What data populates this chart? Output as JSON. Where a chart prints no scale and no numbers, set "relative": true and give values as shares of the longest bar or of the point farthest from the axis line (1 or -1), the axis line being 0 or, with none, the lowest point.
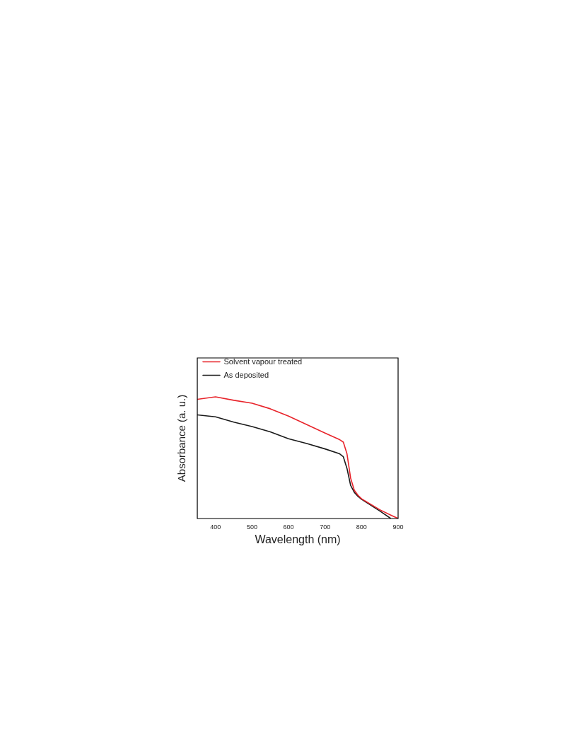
{
  "chart_data": {
    "type": "line",
    "xlabel": "Wavelength (nm)",
    "ylabel": "Absorbance (a. u.)",
    "relative": true,
    "xlim": [
      350,
      900
    ],
    "xticks": [
      400,
      500,
      600,
      700,
      800,
      900
    ],
    "legend": "top left",
    "grid": false,
    "marker": "none",
    "line_style": "solid",
    "series": [
      {
        "name": "Solvent vapour treated",
        "color": "#e8242b",
        "x": [
          350,
          400,
          450,
          500,
          550,
          600,
          650,
          700,
          740,
          750,
          760,
          770,
          780,
          790,
          800,
          850,
          880,
          900
        ],
        "values": [
          0.98,
          1,
          0.972,
          0.948,
          0.902,
          0.842,
          0.772,
          0.702,
          0.648,
          0.628,
          0.532,
          0.332,
          0.232,
          0.192,
          0.162,
          0.072,
          0.028,
          0
        ]
      },
      {
        "name": "As deposited",
        "color": "#1a1a1a",
        "x": [
          350,
          400,
          450,
          500,
          550,
          600,
          650,
          700,
          740,
          750,
          760,
          770,
          780,
          790,
          800,
          850,
          880
        ],
        "values": [
          0.852,
          0.836,
          0.792,
          0.756,
          0.712,
          0.656,
          0.616,
          0.572,
          0.532,
          0.508,
          0.412,
          0.272,
          0.216,
          0.182,
          0.158,
          0.062,
          0
        ]
      }
    ]
  }
}
